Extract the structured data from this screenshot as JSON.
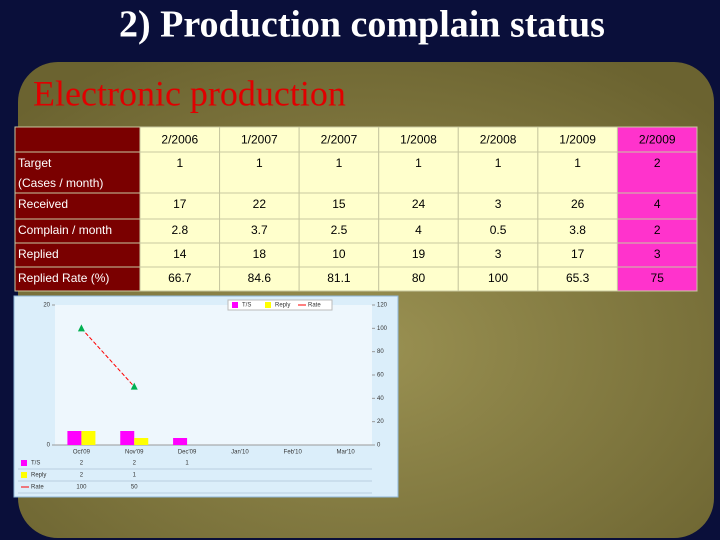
{
  "header": {
    "title": "2) Production complain status"
  },
  "section_title": "Electronic production",
  "table": {
    "columns": [
      "2/2006",
      "1/2007",
      "2/2007",
      "1/2008",
      "2/2008",
      "1/2009",
      "2/2009"
    ],
    "rows": [
      {
        "label": [
          "Target",
          "(Cases / month)"
        ],
        "cells": [
          1,
          1,
          1,
          1,
          1,
          1,
          2
        ]
      },
      {
        "label": [
          "Received"
        ],
        "cells": [
          17,
          22,
          15,
          24,
          3,
          26,
          4
        ]
      },
      {
        "label": [
          "Complain / month"
        ],
        "cells": [
          2.8,
          3.7,
          2.5,
          4,
          0.5,
          3.8,
          2
        ]
      },
      {
        "label": [
          "Replied"
        ],
        "cells": [
          14,
          18,
          10,
          19,
          3,
          17,
          3
        ]
      },
      {
        "label": [
          "Replied Rate (%)"
        ],
        "cells": [
          66.7,
          84.6,
          81.1,
          80,
          100,
          65.3,
          75
        ]
      }
    ]
  },
  "chart": {
    "type": "bar-line",
    "categories": [
      "Oct'09",
      "Nov'09",
      "Dec'09",
      "Jan'10",
      "Feb'10",
      "Mar'10"
    ],
    "series": [
      {
        "name": "T/S",
        "color": "#ff00ff",
        "values": [
          2,
          2,
          1,
          null,
          null,
          null
        ]
      },
      {
        "name": "Reply",
        "color": "#ffff00",
        "values": [
          2,
          1,
          null,
          null,
          null,
          null
        ]
      },
      {
        "name": "Rate",
        "color": "#ff0000",
        "marker_color": "#00b050",
        "axis": "y2",
        "values": [
          100,
          50,
          null,
          null,
          null,
          null
        ]
      }
    ],
    "ylim": [
      0,
      20
    ],
    "yticks": [
      0,
      20
    ],
    "y2lim": [
      0,
      120
    ],
    "y2ticks": [
      0,
      20,
      40,
      60,
      80,
      100,
      120
    ]
  }
}
